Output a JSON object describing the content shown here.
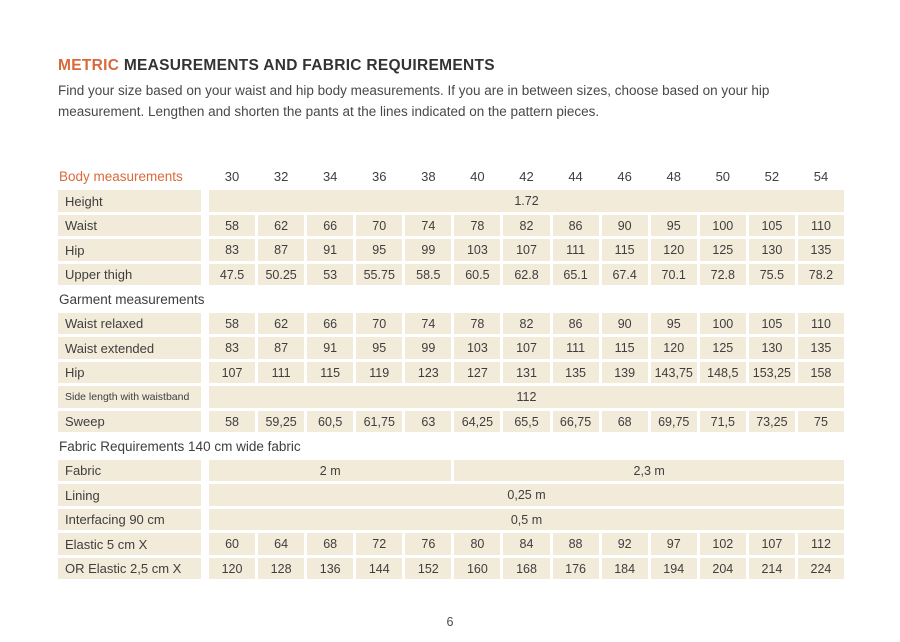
{
  "colors": {
    "accent": "#d8693a",
    "cell_bg": "#f3ebda",
    "text": "#3e3e3e"
  },
  "header": {
    "title_accent": "METRIC",
    "title_rest": " MEASUREMENTS AND FABRIC REQUIREMENTS",
    "intro": "Find your size based on your waist and hip body measurements. If you are in between sizes, choose based on your hip measurement. Lengthen and shorten the pants at the lines indicated on the pattern pieces."
  },
  "table": {
    "columns": {
      "label": "Body measurements",
      "sizes": [
        "30",
        "32",
        "34",
        "36",
        "38",
        "40",
        "42",
        "44",
        "46",
        "48",
        "50",
        "52",
        "54"
      ]
    },
    "rows": [
      {
        "type": "data",
        "label": "Height",
        "merged": [
          {
            "span": 13,
            "value": "1.72"
          }
        ]
      },
      {
        "type": "data",
        "label": "Waist",
        "values": [
          "58",
          "62",
          "66",
          "70",
          "74",
          "78",
          "82",
          "86",
          "90",
          "95",
          "100",
          "105",
          "110"
        ]
      },
      {
        "type": "data",
        "label": "Hip",
        "values": [
          "83",
          "87",
          "91",
          "95",
          "99",
          "103",
          "107",
          "111",
          "115",
          "120",
          "125",
          "130",
          "135"
        ]
      },
      {
        "type": "data",
        "label": "Upper thigh",
        "values": [
          "47.5",
          "50.25",
          "53",
          "55.75",
          "58.5",
          "60.5",
          "62.8",
          "65.1",
          "67.4",
          "70.1",
          "72.8",
          "75.5",
          "78.2"
        ]
      },
      {
        "type": "section",
        "label": "Garment measurements"
      },
      {
        "type": "data",
        "label": "Waist relaxed",
        "values": [
          "58",
          "62",
          "66",
          "70",
          "74",
          "78",
          "82",
          "86",
          "90",
          "95",
          "100",
          "105",
          "110"
        ]
      },
      {
        "type": "data",
        "label": "Waist extended",
        "values": [
          "83",
          "87",
          "91",
          "95",
          "99",
          "103",
          "107",
          "111",
          "115",
          "120",
          "125",
          "130",
          "135"
        ]
      },
      {
        "type": "data",
        "label": "Hip",
        "values": [
          "107",
          "111",
          "115",
          "119",
          "123",
          "127",
          "131",
          "135",
          "139",
          "143,75",
          "148,5",
          "153,25",
          "158"
        ]
      },
      {
        "type": "data",
        "label": "Side length with waistband",
        "small_label": true,
        "merged": [
          {
            "span": 13,
            "value": "112"
          }
        ]
      },
      {
        "type": "data",
        "label": "Sweep",
        "values": [
          "58",
          "59,25",
          "60,5",
          "61,75",
          "63",
          "64,25",
          "65,5",
          "66,75",
          "68",
          "69,75",
          "71,5",
          "73,25",
          "75"
        ]
      },
      {
        "type": "section",
        "label": "Fabric Requirements 140 cm wide fabric"
      },
      {
        "type": "data",
        "label": "Fabric",
        "merged": [
          {
            "span": 5,
            "value": "2 m"
          },
          {
            "span": 8,
            "value": "2,3 m"
          }
        ]
      },
      {
        "type": "data",
        "label": "Lining",
        "merged": [
          {
            "span": 13,
            "value": "0,25 m"
          }
        ]
      },
      {
        "type": "data",
        "label": "Interfacing 90 cm",
        "merged": [
          {
            "span": 13,
            "value": "0,5 m"
          }
        ]
      },
      {
        "type": "data",
        "label": "Elastic 5 cm X",
        "values": [
          "60",
          "64",
          "68",
          "72",
          "76",
          "80",
          "84",
          "88",
          "92",
          "97",
          "102",
          "107",
          "112"
        ]
      },
      {
        "type": "data",
        "label": "OR Elastic 2,5 cm X",
        "values": [
          "120",
          "128",
          "136",
          "144",
          "152",
          "160",
          "168",
          "176",
          "184",
          "194",
          "204",
          "214",
          "224"
        ]
      }
    ]
  },
  "footer": {
    "page_number": "6"
  }
}
